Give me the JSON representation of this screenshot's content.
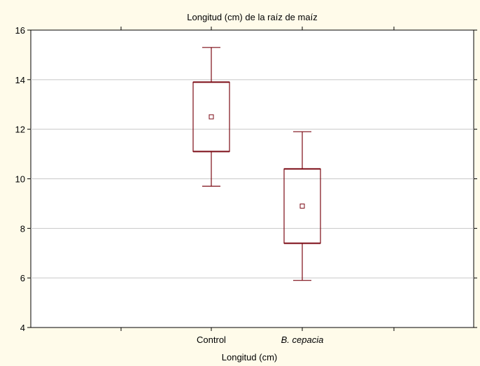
{
  "chart_data": {
    "type": "box",
    "title": "Longitud (cm) de la raíz de maíz",
    "xlabel": "Longitud (cm)",
    "ylabel": "",
    "ylim": [
      4,
      16
    ],
    "yticks": [
      4,
      6,
      8,
      10,
      12,
      14,
      16
    ],
    "grid": true,
    "categories": [
      "Control",
      "B. cepacia"
    ],
    "boxes": [
      {
        "category": "Control",
        "whisker_low": 9.7,
        "q1": 11.1,
        "center": 12.5,
        "q3": 13.9,
        "whisker_high": 15.3
      },
      {
        "category": "B. cepacia",
        "whisker_low": 5.9,
        "q1": 7.4,
        "center": 8.9,
        "q3": 10.4,
        "whisker_high": 11.9
      }
    ]
  },
  "colors": {
    "background": "#fffbea",
    "plot_area": "#ffffff",
    "box_stroke": "#7b0a14",
    "grid": "#c8c8c8",
    "axis": "#000000"
  }
}
